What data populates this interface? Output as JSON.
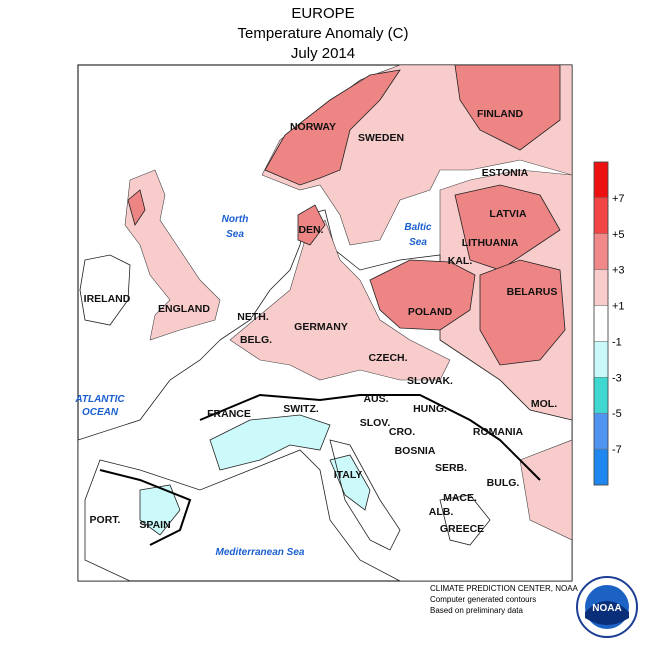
{
  "header": {
    "title": "EUROPE",
    "subtitle": "Temperature Anomaly (C)",
    "date": "July 2014"
  },
  "labels": [
    "NORWAY",
    "SWEDEN",
    "FINLAND",
    "ESTONIA",
    "LATVIA",
    "DEN.",
    "LITHUANIA",
    "KAL.",
    "BELARUS",
    "IRELAND",
    "ENGLAND",
    "POLAND",
    "NETH.",
    "GERMANY",
    "BELG.",
    "CZECH.",
    "SLOVAK.",
    "FRANCE",
    "SWITZ.",
    "AUS.",
    "HUNG.",
    "MOL.",
    "SLOV.",
    "CRO.",
    "ROMANIA",
    "BOSNIA",
    "SERB.",
    "ITALY",
    "BULG.",
    "MACE.",
    "ALB.",
    "PORT.",
    "SPAIN",
    "GREECE"
  ],
  "seas": [
    [
      "North",
      "Sea"
    ],
    [
      "Baltic",
      "Sea"
    ],
    [
      "ATLANTIC",
      "OCEAN"
    ],
    [
      "Mediterranean Sea"
    ]
  ],
  "legend": {
    "ticks": [
      "+7",
      "+5",
      "+3",
      "+1",
      "-1",
      "-3",
      "-5",
      "-7"
    ],
    "colors": [
      "#ee1111",
      "#f24545",
      "#f08a8a",
      "#f9cccc",
      "#ffffff",
      "#c8f8f8",
      "#3fd8d0",
      "#4f94f0",
      "#1e88f0"
    ]
  },
  "footer": [
    "CLIMATE PREDICTION CENTER, NOAA",
    "Computer generated contours",
    "Based on preliminary data"
  ],
  "logo": "NOAA"
}
